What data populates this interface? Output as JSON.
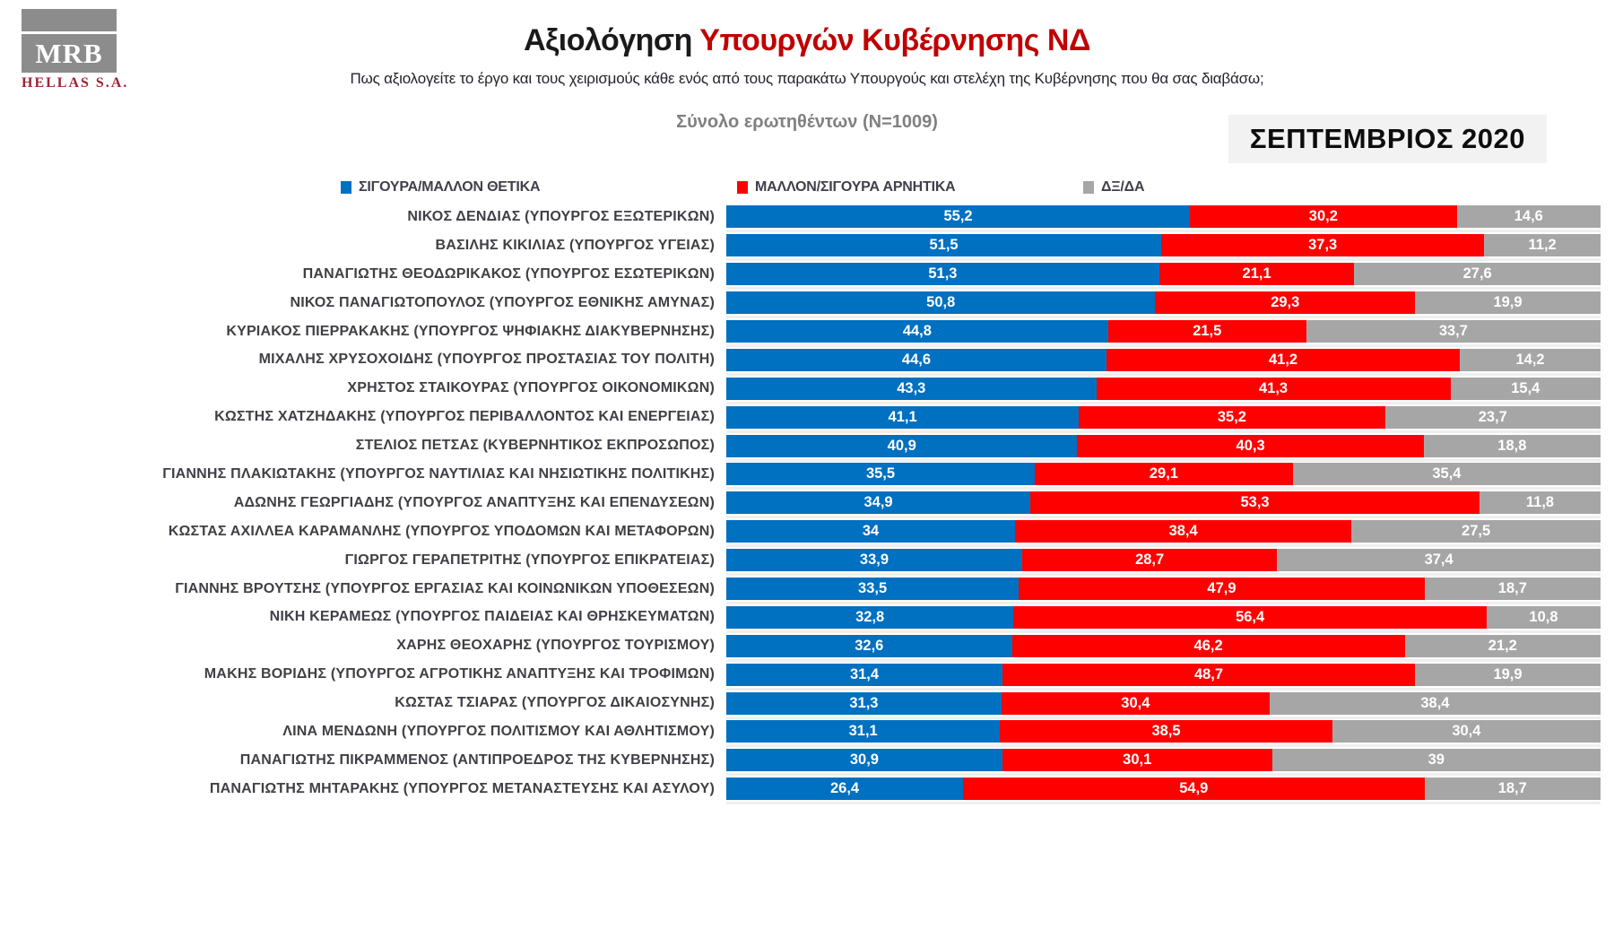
{
  "logo": {
    "mrb": "MRB",
    "hellas": "HELLAS S.A."
  },
  "header": {
    "title_black": "Αξιολόγηση ",
    "title_red": "Υπουργών Κυβέρνησης ΝΔ",
    "subtitle": "Πως αξιολογείτε το έργο και τους χειρισμούς κάθε ενός από τους παρακάτω Υπουργούς και στελέχη της Κυβέρνησης που θα σας διαβάσω;",
    "sample": "Σύνολο ερωτηθέντων (N=1009)",
    "period_badge": "ΣΕΠΤΕΜΒΡΙΟΣ 2020"
  },
  "legend": [
    {
      "label": "ΣΙΓΟΥΡΑ/ΜΑΛΛΟΝ ΘΕΤΙΚΑ",
      "color": "#0070C0"
    },
    {
      "label": "ΜΑΛΛΟΝ/ΣΙΓΟΥΡΑ ΑΡΝΗΤΙΚΑ",
      "color": "#FF0000"
    },
    {
      "label": "ΔΞ/ΔΑ",
      "color": "#A6A6A6"
    }
  ],
  "chart_data": {
    "type": "bar",
    "orientation": "horizontal",
    "stacked": true,
    "title": "Αξιολόγηση Υπουργών Κυβέρνησης ΝΔ",
    "xlim": [
      0,
      100
    ],
    "value_decimal_separator": ",",
    "categories": [
      "ΝΙΚΟΣ ΔΕΝΔΙΑΣ (ΥΠΟΥΡΓΟΣ ΕΞΩΤΕΡΙΚΩΝ)",
      "ΒΑΣΙΛΗΣ ΚΙΚΙΛΙΑΣ (ΥΠΟΥΡΓΟΣ ΥΓΕΙΑΣ)",
      "ΠΑΝΑΓΙΩΤΗΣ ΘΕΟΔΩΡΙΚΑΚΟΣ (ΥΠΟΥΡΓΟΣ ΕΣΩΤΕΡΙΚΩΝ)",
      "ΝΙΚΟΣ ΠΑΝΑΓΙΩΤΟΠΟΥΛΟΣ (ΥΠΟΥΡΓΟΣ ΕΘΝΙΚΗΣ ΑΜΥΝΑΣ)",
      "ΚΥΡΙΑΚΟΣ ΠΙΕΡΡΑΚΑΚΗΣ (ΥΠΟΥΡΓΟΣ ΨΗΦΙΑΚΗΣ ΔΙΑΚΥΒΕΡΝΗΣΗΣ)",
      "ΜΙΧΑΛΗΣ ΧΡΥΣΟΧΟΙΔΗΣ (ΥΠΟΥΡΓΟΣ ΠΡΟΣΤΑΣΙΑΣ ΤΟΥ ΠΟΛΙΤΗ)",
      "ΧΡΗΣΤΟΣ ΣΤΑΙΚΟΥΡΑΣ (ΥΠΟΥΡΓΟΣ ΟΙΚΟΝΟΜΙΚΩΝ)",
      "ΚΩΣΤΗΣ ΧΑΤΖΗΔΑΚΗΣ (ΥΠΟΥΡΓΟΣ ΠΕΡΙΒΑΛΛΟΝΤΟΣ ΚΑΙ ΕΝΕΡΓΕΙΑΣ)",
      "ΣΤΕΛΙΟΣ ΠΕΤΣΑΣ (ΚΥΒΕΡΝΗΤΙΚΟΣ ΕΚΠΡΟΣΩΠΟΣ)",
      "ΓΙΑΝΝΗΣ ΠΛΑΚΙΩΤΑΚΗΣ (ΥΠΟΥΡΓΟΣ ΝΑΥΤΙΛΙΑΣ ΚΑΙ ΝΗΣΙΩΤΙΚΗΣ ΠΟΛΙΤΙΚΗΣ)",
      "ΑΔΩΝΗΣ ΓΕΩΡΓΙΑΔΗΣ (ΥΠΟΥΡΓΟΣ ΑΝΑΠΤΥΞΗΣ ΚΑΙ ΕΠΕΝΔΥΣΕΩΝ)",
      "ΚΩΣΤΑΣ ΑΧΙΛΛΕΑ ΚΑΡΑΜΑΝΛΗΣ (ΥΠΟΥΡΓΟΣ ΥΠΟΔΟΜΩΝ ΚΑΙ ΜΕΤΑΦΟΡΩΝ)",
      "ΓΙΩΡΓΟΣ ΓΕΡΑΠΕΤΡΙΤΗΣ (ΥΠΟΥΡΓΟΣ ΕΠΙΚΡΑΤΕΙΑΣ)",
      "ΓΙΑΝΝΗΣ ΒΡΟΥΤΣΗΣ (ΥΠΟΥΡΓΟΣ ΕΡΓΑΣΙΑΣ ΚΑΙ ΚΟΙΝΩΝΙΚΩΝ ΥΠΟΘΕΣΕΩΝ)",
      "ΝΙΚΗ ΚΕΡΑΜΕΩΣ (ΥΠΟΥΡΓΟΣ ΠΑΙΔΕΙΑΣ ΚΑΙ ΘΡΗΣΚΕΥΜΑΤΩΝ)",
      "ΧΑΡΗΣ ΘΕΟΧΑΡΗΣ (ΥΠΟΥΡΓΟΣ ΤΟΥΡΙΣΜΟΥ)",
      "ΜΑΚΗΣ ΒΟΡΙΔΗΣ (ΥΠΟΥΡΓΟΣ ΑΓΡΟΤΙΚΗΣ ΑΝΑΠΤΥΞΗΣ ΚΑΙ ΤΡΟΦΙΜΩΝ)",
      "ΚΩΣΤΑΣ ΤΣΙΑΡΑΣ (ΥΠΟΥΡΓΟΣ ΔΙΚΑΙΟΣΥΝΗΣ)",
      "ΛΙΝΑ ΜΕΝΔΩΝΗ (ΥΠΟΥΡΓΟΣ ΠΟΛΙΤΙΣΜΟΥ ΚΑΙ ΑΘΛΗΤΙΣΜΟΥ)",
      "ΠΑΝΑΓΙΩΤΗΣ ΠΙΚΡΑΜΜΕΝΟΣ (ΑΝΤΙΠΡΟΕΔΡΟΣ ΤΗΣ ΚΥΒΕΡΝΗΣΗΣ)",
      "ΠΑΝΑΓΙΩΤΗΣ ΜΗΤΑΡΑΚΗΣ (ΥΠΟΥΡΓΟΣ ΜΕΤΑΝΑΣΤΕΥΣΗΣ ΚΑΙ ΑΣΥΛΟΥ)"
    ],
    "series": [
      {
        "name": "ΣΙΓΟΥΡΑ/ΜΑΛΛΟΝ ΘΕΤΙΚΑ",
        "color": "#0070C0",
        "values": [
          55.2,
          51.5,
          51.3,
          50.8,
          44.8,
          44.6,
          43.3,
          41.1,
          40.9,
          35.5,
          34.9,
          34,
          33.9,
          33.5,
          32.8,
          32.6,
          31.4,
          31.3,
          31.1,
          30.9,
          26.4
        ]
      },
      {
        "name": "ΜΑΛΛΟΝ/ΣΙΓΟΥΡΑ ΑΡΝΗΤΙΚΑ",
        "color": "#FF0000",
        "values": [
          30.2,
          37.3,
          21.1,
          29.3,
          21.5,
          41.2,
          41.3,
          35.2,
          40.3,
          29.1,
          53.3,
          38.4,
          28.7,
          47.9,
          56.4,
          46.2,
          48.7,
          30.4,
          38.5,
          30.1,
          54.9
        ]
      },
      {
        "name": "ΔΞ/ΔΑ",
        "color": "#A6A6A6",
        "values": [
          14.6,
          11.2,
          27.6,
          19.9,
          33.7,
          14.2,
          15.4,
          23.7,
          18.8,
          35.4,
          11.8,
          27.5,
          37.4,
          18.7,
          10.8,
          21.2,
          19.9,
          38.4,
          30.4,
          39,
          18.7
        ]
      }
    ]
  }
}
